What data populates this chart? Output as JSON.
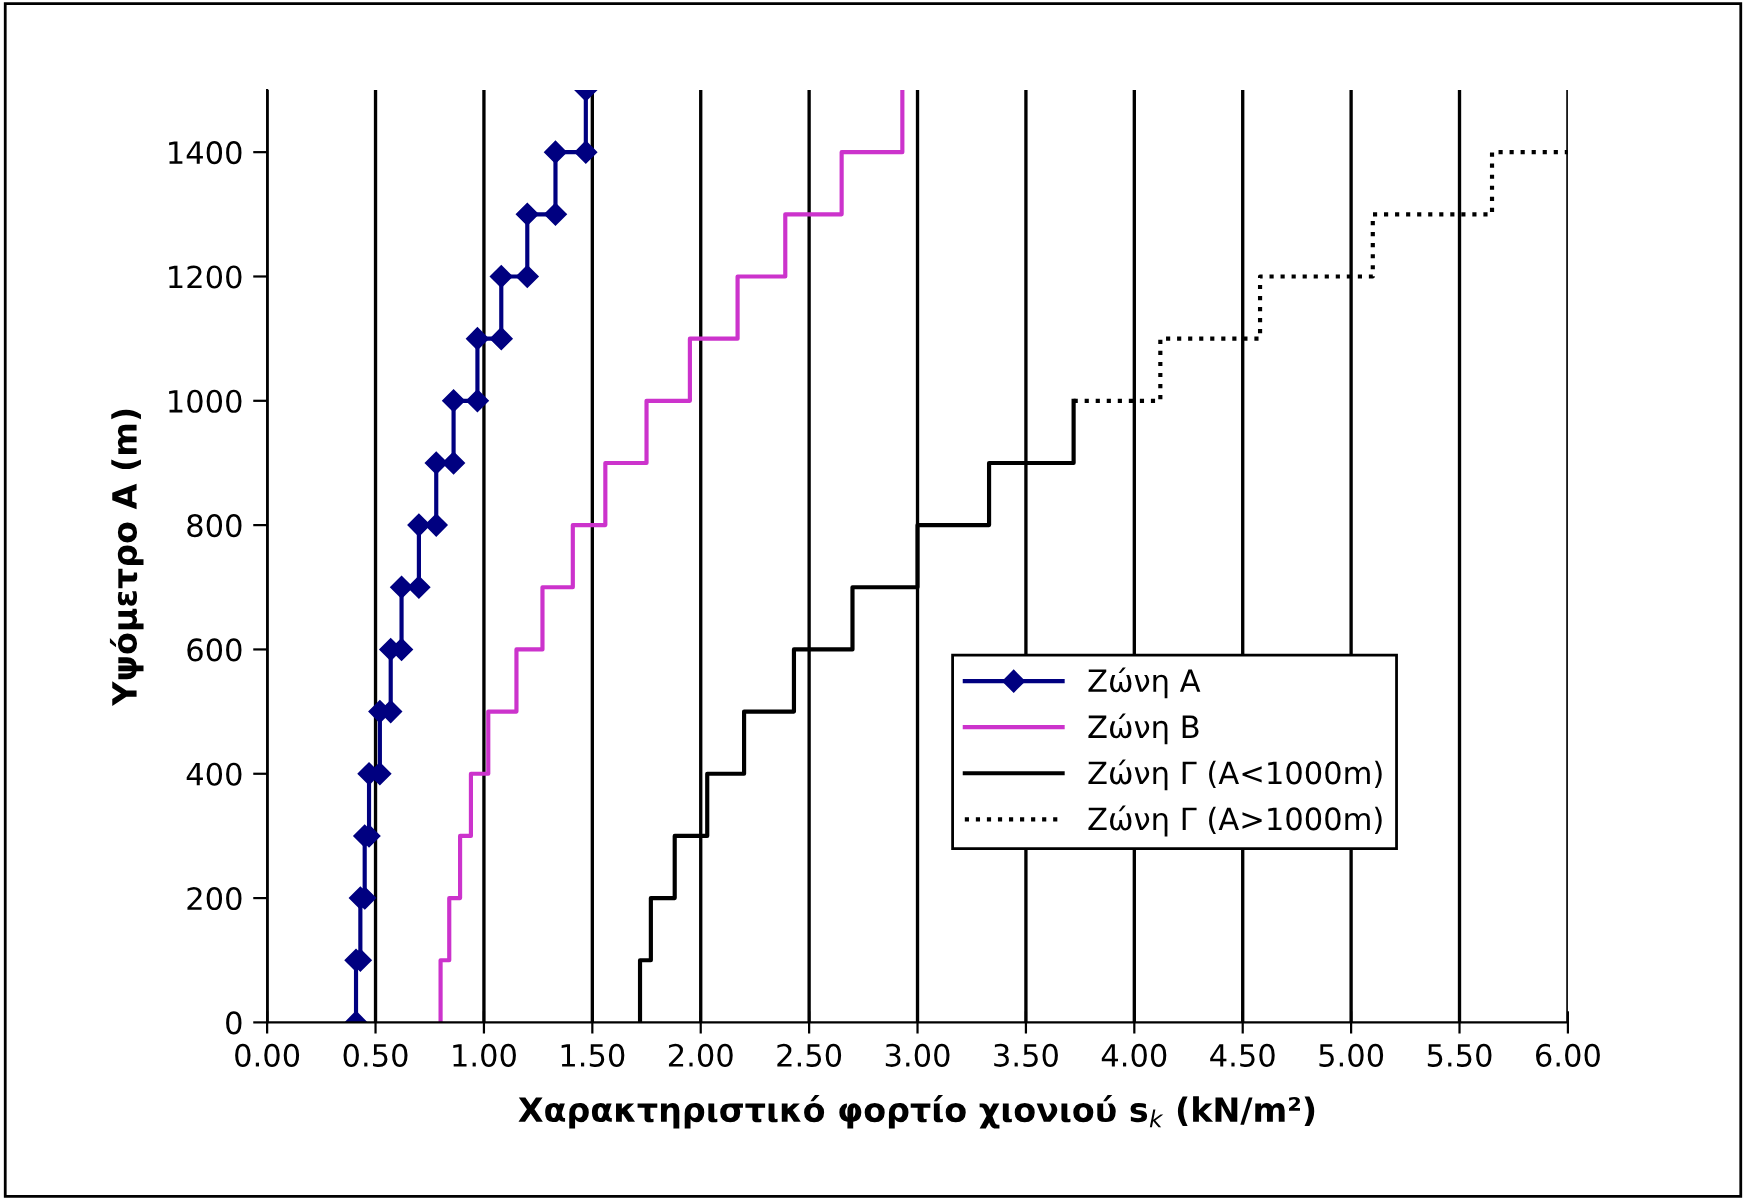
{
  "chart_data": {
    "type": "line",
    "xlabel": "Χαρακτηριστικό φορτίο χιονιού s$_{k}$ (kN/m²)",
    "ylabel": "Υψόμετρο A (m)",
    "xlim": [
      0,
      6
    ],
    "ylim": [
      0,
      1500
    ],
    "xticks": [
      {
        "value": 0,
        "label": "0.00"
      },
      {
        "value": 0.5,
        "label": "0.50"
      },
      {
        "value": 1,
        "label": "1.00"
      },
      {
        "value": 1.5,
        "label": "1.50"
      },
      {
        "value": 2,
        "label": "2.00"
      },
      {
        "value": 2.5,
        "label": "2.50"
      },
      {
        "value": 3,
        "label": "3.00"
      },
      {
        "value": 3.5,
        "label": "3.50"
      },
      {
        "value": 4,
        "label": "4.00"
      },
      {
        "value": 4.5,
        "label": "4.50"
      },
      {
        "value": 5,
        "label": "5.00"
      },
      {
        "value": 5.5,
        "label": "5.50"
      },
      {
        "value": 6,
        "label": "6.00"
      }
    ],
    "yticks": [
      0,
      200,
      400,
      600,
      800,
      1000,
      1200,
      1400
    ],
    "grid": "x",
    "legend": "bottom right",
    "series": [
      {
        "name": "Ζώνη A",
        "color": "#000080",
        "marker": "diamond",
        "line_style": "solid",
        "x": [
          0.41,
          0.41,
          0.43,
          0.43,
          0.45,
          0.45,
          0.47,
          0.47,
          0.52,
          0.52,
          0.57,
          0.57,
          0.62,
          0.62,
          0.7,
          0.7,
          0.78,
          0.78,
          0.86,
          0.86,
          0.97,
          0.97,
          1.08,
          1.08,
          1.2,
          1.2,
          1.33,
          1.33,
          1.47,
          1.47
        ],
        "values": [
          0,
          100,
          100,
          200,
          200,
          300,
          300,
          400,
          400,
          500,
          500,
          600,
          600,
          700,
          700,
          800,
          800,
          900,
          900,
          1000,
          1000,
          1100,
          1100,
          1200,
          1200,
          1300,
          1300,
          1400,
          1400,
          1500
        ]
      },
      {
        "name": "Ζώνη B",
        "color": "#cc33cc",
        "marker": "none",
        "line_style": "solid",
        "x": [
          0.8,
          0.8,
          0.84,
          0.84,
          0.89,
          0.89,
          0.94,
          0.94,
          1.02,
          1.02,
          1.15,
          1.15,
          1.27,
          1.27,
          1.41,
          1.41,
          1.56,
          1.56,
          1.75,
          1.75,
          1.95,
          1.95,
          2.17,
          2.17,
          2.39,
          2.39,
          2.65,
          2.65,
          2.93,
          2.93
        ],
        "values": [
          0,
          100,
          100,
          200,
          200,
          300,
          300,
          400,
          400,
          500,
          500,
          600,
          600,
          700,
          700,
          800,
          800,
          900,
          900,
          1000,
          1000,
          1100,
          1100,
          1200,
          1200,
          1300,
          1300,
          1400,
          1400,
          1500
        ]
      },
      {
        "name": "Ζώνη Γ (A<1000m)",
        "color": "#000000",
        "marker": "none",
        "line_style": "solid",
        "x": [
          1.72,
          1.72,
          1.77,
          1.77,
          1.88,
          1.88,
          2.03,
          2.03,
          2.2,
          2.2,
          2.43,
          2.43,
          2.7,
          2.7,
          3.0,
          3.0,
          3.33,
          3.33,
          3.72,
          3.72
        ],
        "values": [
          0,
          100,
          100,
          200,
          200,
          300,
          300,
          400,
          400,
          500,
          500,
          600,
          600,
          700,
          700,
          800,
          800,
          900,
          900,
          1000
        ]
      },
      {
        "name": "Ζώνη Γ (A>1000m)",
        "color": "#000000",
        "marker": "none",
        "line_style": "dotted",
        "x": [
          3.72,
          4.12,
          4.12,
          4.58,
          4.58,
          5.1,
          5.1,
          5.65,
          5.65,
          6.0
        ],
        "values": [
          1000,
          1000,
          1100,
          1100,
          1200,
          1200,
          1300,
          1300,
          1400,
          1400
        ]
      }
    ]
  }
}
